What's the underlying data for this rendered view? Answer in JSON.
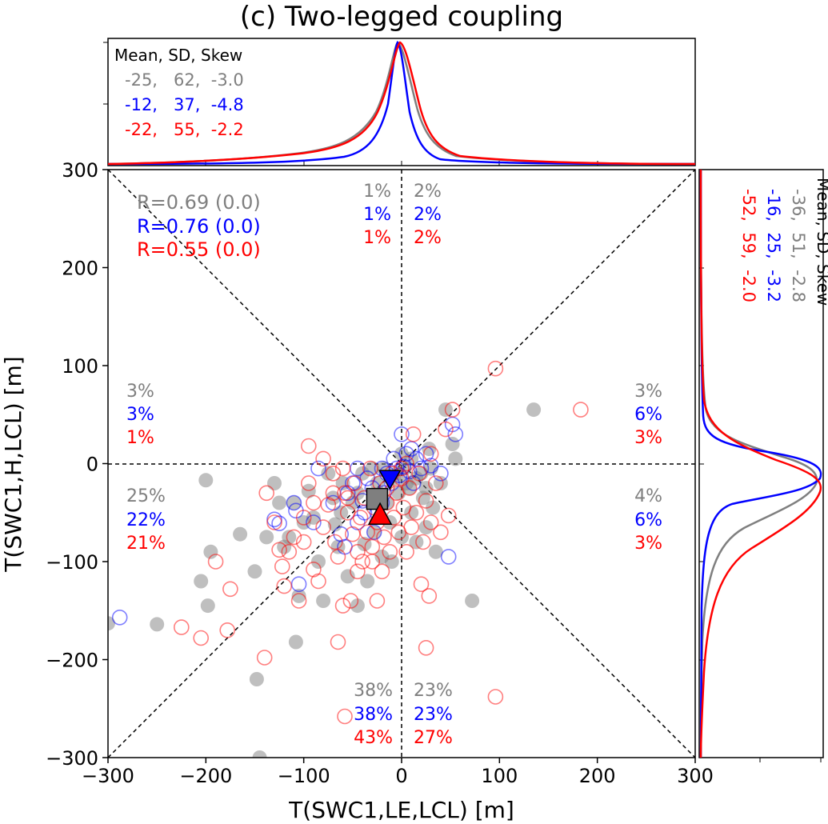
{
  "chart_data": {
    "type": "scatter",
    "title": "(c) Two-legged coupling",
    "xlabel": "T(SWC1,LE,LCL) [m]",
    "ylabel": "T(SWC1,H,LCL) [m]",
    "xlim": [
      -300,
      300
    ],
    "ylim": [
      -300,
      300
    ],
    "xticks": [
      "−300",
      "−200",
      "−100",
      "0",
      "100",
      "200",
      "300"
    ],
    "yticks": [
      "−300",
      "−200",
      "−100",
      "0",
      "100",
      "200",
      "300"
    ],
    "xtick_values": [
      -300,
      -200,
      -100,
      0,
      100,
      200,
      300
    ],
    "ytick_values": [
      -300,
      -200,
      -100,
      0,
      100,
      200,
      300
    ],
    "colors": {
      "gray": "#7f7f7f",
      "blue": "#0000ff",
      "red": "#ff0000"
    },
    "correlations": [
      {
        "text": "R=0.69 (0.0)",
        "color": "#7f7f7f"
      },
      {
        "text": "R=0.76 (0.0)",
        "color": "#0000ff"
      },
      {
        "text": "R=0.55 (0.0)",
        "color": "#ff0000"
      }
    ],
    "sector_percentages": [
      {
        "position": "top-left",
        "values": [
          "1%",
          "1%",
          "1%"
        ]
      },
      {
        "position": "top-right",
        "values": [
          "2%",
          "2%",
          "2%"
        ]
      },
      {
        "position": "left-upper",
        "values": [
          "3%",
          "3%",
          "1%"
        ]
      },
      {
        "position": "right-upper",
        "values": [
          "3%",
          "6%",
          "3%"
        ]
      },
      {
        "position": "left-lower",
        "values": [
          "25%",
          "22%",
          "21%"
        ]
      },
      {
        "position": "right-lower",
        "values": [
          "4%",
          "6%",
          "3%"
        ]
      },
      {
        "position": "bottom-left",
        "values": [
          "38%",
          "38%",
          "43%"
        ]
      },
      {
        "position": "bottom-right",
        "values": [
          "23%",
          "23%",
          "27%"
        ]
      }
    ],
    "top_marginal": {
      "header": "Mean, SD, Skew",
      "stats": [
        {
          "text": "-25,   62,  -3.0",
          "color": "#7f7f7f"
        },
        {
          "text": "-12,   37,  -4.8",
          "color": "#0000ff"
        },
        {
          "text": "-22,   55,  -2.2",
          "color": "#ff0000"
        }
      ]
    },
    "right_marginal": {
      "header": "Mean, SD, Skew",
      "stats": [
        {
          "text": "-36,  51,  -2.8",
          "color": "#7f7f7f"
        },
        {
          "text": "-16,  25,  -3.2",
          "color": "#0000ff"
        },
        {
          "text": "-52,  59,  -2.0",
          "color": "#ff0000"
        }
      ]
    },
    "means": [
      {
        "series": "gray",
        "marker": "square",
        "x": -25,
        "y": -36
      },
      {
        "series": "blue",
        "marker": "triangle-down",
        "x": -12,
        "y": -16
      },
      {
        "series": "red",
        "marker": "triangle-up",
        "x": -22,
        "y": -52
      }
    ],
    "series": [
      {
        "marker": "filled-circle",
        "color": "#7f7f7f",
        "points": [
          [
            -300,
            -163
          ],
          [
            -250,
            -164
          ],
          [
            -200,
            -17
          ],
          [
            -205,
            -120
          ],
          [
            -198,
            -145
          ],
          [
            -195,
            -90
          ],
          [
            -165,
            -72
          ],
          [
            -150,
            -110
          ],
          [
            -148,
            -220
          ],
          [
            -145,
            -300
          ],
          [
            -138,
            -75
          ],
          [
            -130,
            -20
          ],
          [
            -125,
            -40
          ],
          [
            -120,
            -85
          ],
          [
            -108,
            -182
          ],
          [
            -105,
            -135
          ],
          [
            -100,
            -60
          ],
          [
            -95,
            -28
          ],
          [
            -80,
            -140
          ],
          [
            -75,
            -10
          ],
          [
            -68,
            -62
          ],
          [
            -62,
            -50
          ],
          [
            -55,
            -115
          ],
          [
            -45,
            -30
          ],
          [
            -45,
            -145
          ],
          [
            -38,
            -82
          ],
          [
            -35,
            -120
          ],
          [
            -30,
            -5
          ],
          [
            -28,
            -70
          ],
          [
            -20,
            -95
          ],
          [
            -15,
            -40
          ],
          [
            -12,
            -60
          ],
          [
            -10,
            -100
          ],
          [
            -5,
            -10
          ],
          [
            -3,
            -30
          ],
          [
            0,
            -75
          ],
          [
            0,
            10
          ],
          [
            5,
            -20
          ],
          [
            10,
            -50
          ],
          [
            10,
            5
          ],
          [
            15,
            -80
          ],
          [
            20,
            -10
          ],
          [
            22,
            -35
          ],
          [
            25,
            -65
          ],
          [
            28,
            15
          ],
          [
            30,
            -5
          ],
          [
            35,
            -90
          ],
          [
            40,
            -20
          ],
          [
            45,
            55
          ],
          [
            52,
            20
          ],
          [
            55,
            5
          ],
          [
            72,
            -140
          ],
          [
            135,
            55
          ],
          [
            -60,
            -20
          ],
          [
            -50,
            -40
          ],
          [
            -40,
            -10
          ],
          [
            -25,
            -20
          ],
          [
            -18,
            -5
          ],
          [
            -8,
            -15
          ],
          [
            3,
            -5
          ],
          [
            8,
            -25
          ],
          [
            15,
            -15
          ],
          [
            25,
            -25
          ],
          [
            32,
            -45
          ],
          [
            -70,
            -35
          ],
          [
            -90,
            -55
          ],
          [
            -110,
            -40
          ],
          [
            -115,
            -75
          ],
          [
            -85,
            -100
          ],
          [
            -65,
            -85
          ]
        ]
      },
      {
        "marker": "open-circle",
        "color": "#0000ff",
        "points": [
          [
            -288,
            -157
          ],
          [
            -130,
            -57
          ],
          [
            -125,
            -61
          ],
          [
            -110,
            -40
          ],
          [
            -108,
            -48
          ],
          [
            -105,
            -123
          ],
          [
            -90,
            -60
          ],
          [
            -85,
            -5
          ],
          [
            -70,
            -40
          ],
          [
            -62,
            -72
          ],
          [
            -58,
            -85
          ],
          [
            -50,
            -20
          ],
          [
            -45,
            -60
          ],
          [
            -40,
            -38
          ],
          [
            -35,
            -15
          ],
          [
            -30,
            -25
          ],
          [
            -25,
            -50
          ],
          [
            -20,
            -5
          ],
          [
            -18,
            -30
          ],
          [
            -15,
            -10
          ],
          [
            -10,
            -20
          ],
          [
            -8,
            5
          ],
          [
            -5,
            -5
          ],
          [
            -2,
            -12
          ],
          [
            0,
            30
          ],
          [
            2,
            -3
          ],
          [
            5,
            10
          ],
          [
            8,
            -8
          ],
          [
            10,
            15
          ],
          [
            12,
            -20
          ],
          [
            15,
            5
          ],
          [
            20,
            -5
          ],
          [
            25,
            10
          ],
          [
            30,
            -2
          ],
          [
            40,
            -10
          ],
          [
            48,
            -95
          ],
          [
            52,
            40
          ],
          [
            55,
            30
          ],
          [
            -55,
            -30
          ],
          [
            -45,
            -5
          ],
          [
            -38,
            -50
          ],
          [
            -28,
            -70
          ],
          [
            -20,
            -40
          ]
        ]
      },
      {
        "marker": "open-circle",
        "color": "#ff0000",
        "points": [
          [
            -225,
            -167
          ],
          [
            -205,
            -178
          ],
          [
            -190,
            -100
          ],
          [
            -178,
            -170
          ],
          [
            -175,
            -128
          ],
          [
            -140,
            -198
          ],
          [
            -138,
            -30
          ],
          [
            -130,
            -60
          ],
          [
            -125,
            -88
          ],
          [
            -122,
            -105
          ],
          [
            -115,
            -90
          ],
          [
            -110,
            -75
          ],
          [
            -105,
            -140
          ],
          [
            -100,
            -55
          ],
          [
            -95,
            -20
          ],
          [
            -90,
            -108
          ],
          [
            -85,
            -120
          ],
          [
            -80,
            -65
          ],
          [
            -75,
            -42
          ],
          [
            -70,
            -10
          ],
          [
            -68,
            -80
          ],
          [
            -65,
            -95
          ],
          [
            -60,
            -145
          ],
          [
            -58,
            -30
          ],
          [
            -55,
            -50
          ],
          [
            -52,
            -140
          ],
          [
            -50,
            -72
          ],
          [
            -48,
            -20
          ],
          [
            -45,
            -90
          ],
          [
            -42,
            -55
          ],
          [
            -40,
            -100
          ],
          [
            -38,
            -35
          ],
          [
            -35,
            -70
          ],
          [
            -32,
            -5
          ],
          [
            -30,
            -85
          ],
          [
            -28,
            -45
          ],
          [
            -25,
            -60
          ],
          [
            -22,
            -20
          ],
          [
            -20,
            -110
          ],
          [
            -18,
            -75
          ],
          [
            -15,
            -40
          ],
          [
            -12,
            -90
          ],
          [
            -10,
            -10
          ],
          [
            -8,
            -55
          ],
          [
            -5,
            -30
          ],
          [
            -3,
            -70
          ],
          [
            0,
            -5
          ],
          [
            2,
            -45
          ],
          [
            5,
            -90
          ],
          [
            8,
            -25
          ],
          [
            10,
            -65
          ],
          [
            12,
            30
          ],
          [
            15,
            -50
          ],
          [
            18,
            -10
          ],
          [
            20,
            -123
          ],
          [
            22,
            -80
          ],
          [
            25,
            -38
          ],
          [
            28,
            -135
          ],
          [
            30,
            -60
          ],
          [
            35,
            -20
          ],
          [
            40,
            -70
          ],
          [
            45,
            35
          ],
          [
            48,
            -53
          ],
          [
            52,
            55
          ],
          [
            96,
            97
          ],
          [
            183,
            55
          ],
          [
            96,
            -238
          ],
          [
            -58,
            -258
          ],
          [
            -65,
            -182
          ],
          [
            -60,
            -5
          ],
          [
            -120,
            -125
          ],
          [
            -25,
            -140
          ],
          [
            25,
            -188
          ],
          [
            -55,
            -35
          ],
          [
            -45,
            -110
          ],
          [
            -15,
            -25
          ],
          [
            0,
            -15
          ],
          [
            5,
            0
          ],
          [
            30,
            10
          ],
          [
            -90,
            -40
          ],
          [
            -70,
            -30
          ],
          [
            -100,
            -80
          ],
          [
            -80,
            5
          ],
          [
            -95,
            18
          ],
          [
            -30,
            -100
          ]
        ]
      }
    ]
  }
}
